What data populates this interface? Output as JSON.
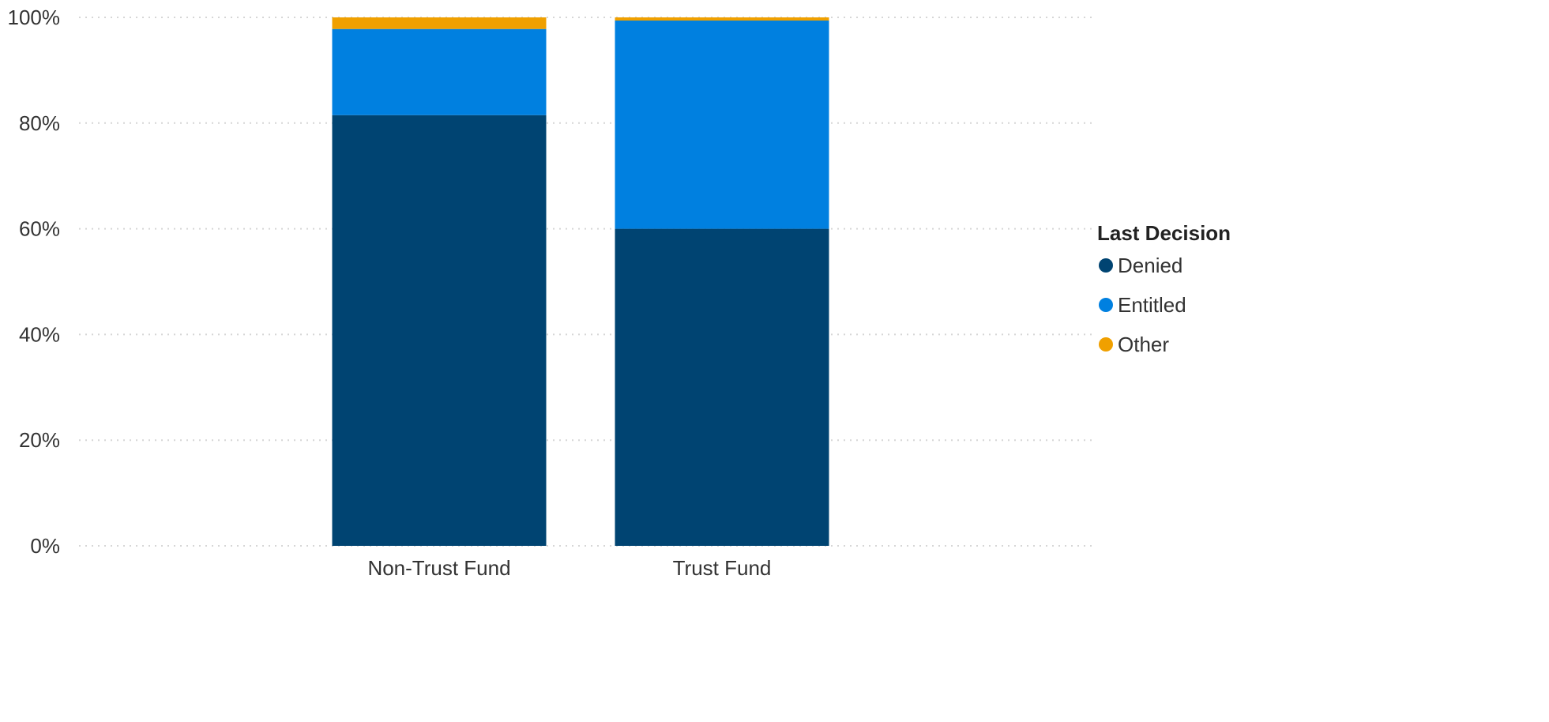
{
  "chart_data": {
    "type": "bar",
    "stacked": true,
    "categories": [
      "Non-Trust Fund",
      "Trust Fund"
    ],
    "series": [
      {
        "name": "Denied",
        "color": "#004472",
        "values": [
          81.5,
          60.0
        ]
      },
      {
        "name": "Entitled",
        "color": "#0080e0",
        "values": [
          16.3,
          39.4
        ]
      },
      {
        "name": "Other",
        "color": "#f0a000",
        "values": [
          2.2,
          0.6
        ]
      }
    ],
    "ylim": [
      0,
      100
    ],
    "yticks": [
      "0%",
      "20%",
      "40%",
      "60%",
      "80%",
      "100%"
    ],
    "grid": true,
    "legend": {
      "title": "Last Decision",
      "position": "right"
    }
  }
}
